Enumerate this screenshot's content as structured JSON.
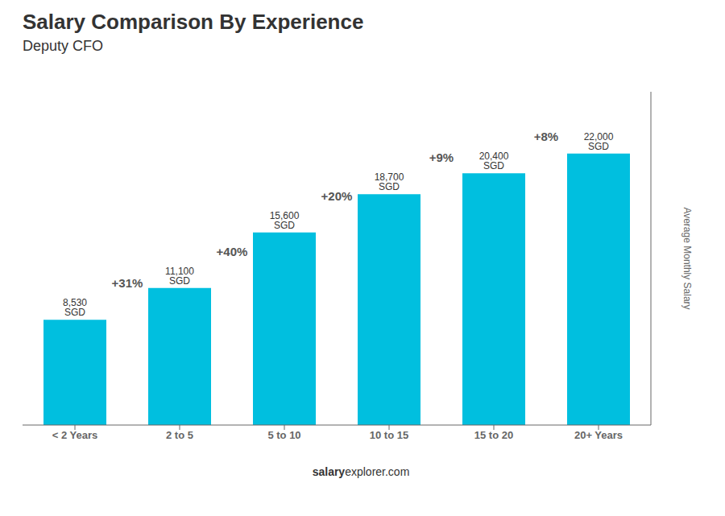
{
  "chart_data": {
    "type": "bar",
    "title": "Salary Comparison By Experience",
    "subtitle": "Deputy CFO",
    "categories": [
      "< 2 Years",
      "2 to 5",
      "5 to 10",
      "10 to 15",
      "15 to 20",
      "20+ Years"
    ],
    "values": [
      8530,
      11100,
      15600,
      18700,
      20400,
      22000
    ],
    "value_labels": [
      "8,530 SGD",
      "11,100 SGD",
      "15,600 SGD",
      "18,700 SGD",
      "20,400 SGD",
      "22,000 SGD"
    ],
    "data_labels": true,
    "annotations": [
      "+31%",
      "+40%",
      "+20%",
      "+9%",
      "+8%",
      "salary",
      "explorer.com"
    ],
    "y_label": "Average Monthly Salary",
    "color": "#00BFDF",
    "ylim": [
      0,
      27000
    ],
    "grid": false,
    "tick_labels": "x"
  }
}
